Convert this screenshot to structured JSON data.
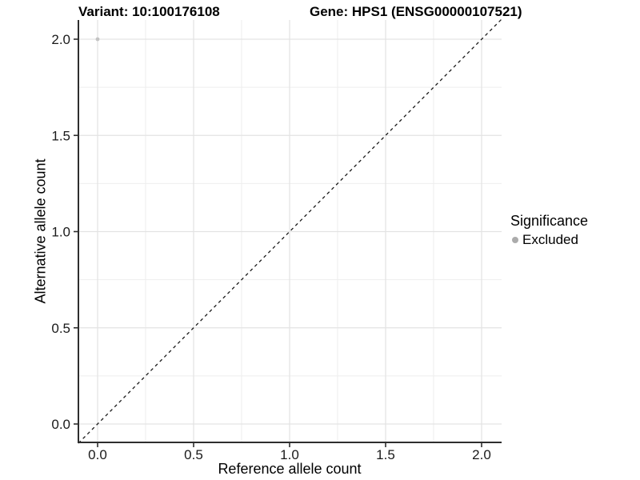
{
  "titles": {
    "variant": "Variant: 10:100176108",
    "gene": "Gene: HPS1 (ENSG00000107521)"
  },
  "chart_data": {
    "type": "scatter",
    "title_left": "Variant: 10:100176108",
    "title_right": "Gene: HPS1 (ENSG00000107521)",
    "xlabel": "Reference allele count",
    "ylabel": "Alternative allele count",
    "xlim": [
      -0.1,
      2.1
    ],
    "ylim": [
      -0.1,
      2.1
    ],
    "x_ticks": [
      0.0,
      0.5,
      1.0,
      1.5,
      2.0
    ],
    "x_tick_labels": [
      "0.0",
      "0.5",
      "1.0",
      "1.5",
      "2.0"
    ],
    "y_ticks": [
      0.0,
      0.5,
      1.0,
      1.5,
      2.0
    ],
    "y_tick_labels": [
      "0.0",
      "0.5",
      "1.0",
      "1.5",
      "2.0"
    ],
    "minor_ticks": [
      0.25,
      0.75,
      1.25,
      1.75
    ],
    "grid": "major and minor gridlines on white panel",
    "reference_line": {
      "type": "abline",
      "slope": 1,
      "intercept": 0,
      "style": "dashed",
      "color": "#1a1a1a"
    },
    "series": [
      {
        "name": "Excluded",
        "color": "#c3c3c3",
        "points": [
          {
            "x": 0.0,
            "y": 2.0
          }
        ]
      }
    ],
    "legend": {
      "title": "Significance",
      "position": "right",
      "items": [
        {
          "label": "Excluded",
          "color": "#ababab"
        }
      ]
    }
  },
  "colors": {
    "background": "#ffffff",
    "axis_line": "#2e2e2e",
    "tick_text": "#1a1a1a",
    "grid_major": "#e3e3e3",
    "grid_minor": "#eeeeee"
  }
}
